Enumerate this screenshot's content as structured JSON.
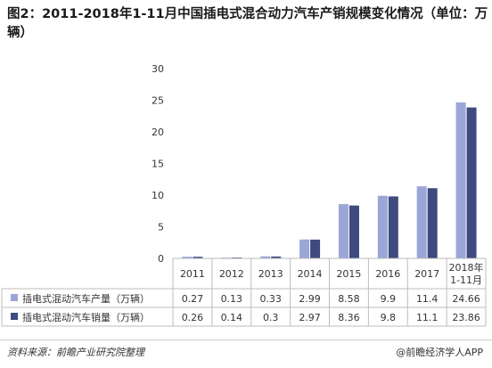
{
  "title": "图2：2011-2018年1-11月中国插电式混合动力汽车产销规模变化情况（单位：万辆）",
  "source": "资料来源：前瞻产业研究院整理",
  "brand": "@前瞻经济学人APP",
  "chart_data": {
    "type": "bar",
    "categories": [
      "2011",
      "2012",
      "2013",
      "2014",
      "2015",
      "2016",
      "2017",
      "2018年\n1-11月"
    ],
    "series": [
      {
        "name": "插电式混动汽车产量（万辆）",
        "values": [
          0.27,
          0.13,
          0.33,
          2.99,
          8.58,
          9.9,
          11.4,
          24.66
        ],
        "labels": [
          "0.27",
          "0.13",
          "0.33",
          "2.99",
          "8.58",
          "9.9",
          "11.4",
          "24.66"
        ],
        "color": "#9aa6d8"
      },
      {
        "name": "插电式混动汽车销量（万辆）",
        "values": [
          0.26,
          0.14,
          0.3,
          2.97,
          8.36,
          9.8,
          11.1,
          23.86
        ],
        "labels": [
          "0.26",
          "0.14",
          "0.3",
          "2.97",
          "8.36",
          "9.8",
          "11.1",
          "23.86"
        ],
        "color": "#3f4a7e"
      }
    ],
    "yticks": [
      "0",
      "5",
      "10",
      "15",
      "20",
      "25",
      "30"
    ],
    "ylim": [
      0,
      30
    ],
    "grid": false,
    "legend": "data-table"
  }
}
